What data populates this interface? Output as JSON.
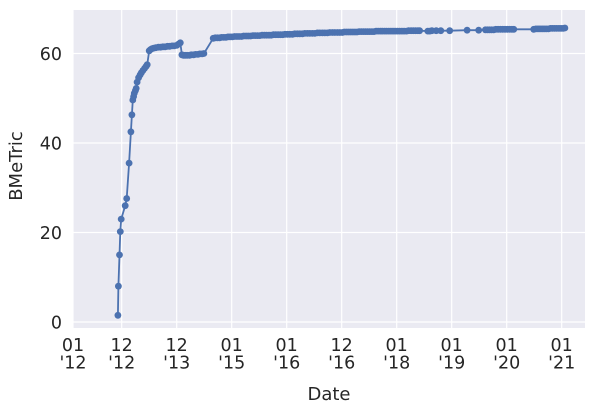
{
  "figure": {
    "background": "#ffffff"
  },
  "chart_data": {
    "type": "line",
    "title": "",
    "xlabel": "Date",
    "ylabel": "BMeTric",
    "grid": true,
    "legend": false,
    "ylim": [
      -1.3,
      69.7
    ],
    "xlim": [
      "2012-01-01",
      "2021-06-01"
    ],
    "theme": {
      "axes_background": "#eaeaf2",
      "grid_color": "#ffffff",
      "text_color": "#262626",
      "line_color": "#4c72b0",
      "marker_color": "#4c72b0"
    },
    "y_ticks": [
      0,
      20,
      40,
      60
    ],
    "x_ticks": [
      {
        "month": "01",
        "year": "'12",
        "date": "2012-01-01"
      },
      {
        "month": "12",
        "year": "'12",
        "date": "2012-12-01"
      },
      {
        "month": "12",
        "year": "'13",
        "date": "2013-12-01"
      },
      {
        "month": "01",
        "year": "'15",
        "date": "2015-01-01"
      },
      {
        "month": "01",
        "year": "'16",
        "date": "2016-01-01"
      },
      {
        "month": "12",
        "year": "'16",
        "date": "2016-12-01"
      },
      {
        "month": "01",
        "year": "'18",
        "date": "2018-01-01"
      },
      {
        "month": "01",
        "year": "'19",
        "date": "2019-01-01"
      },
      {
        "month": "01",
        "year": "'20",
        "date": "2020-01-01"
      },
      {
        "month": "01",
        "year": "'21",
        "date": "2021-01-01"
      }
    ],
    "series": [
      {
        "name": "BMeTric",
        "points": [
          [
            "2012-11-05",
            1.5
          ],
          [
            "2012-11-09",
            8.0
          ],
          [
            "2012-11-16",
            15.0
          ],
          [
            "2012-11-22",
            20.2
          ],
          [
            "2012-11-28",
            23.0
          ],
          [
            "2012-12-24",
            26.0
          ],
          [
            "2013-01-04",
            27.6
          ],
          [
            "2013-01-20",
            35.5
          ],
          [
            "2013-02-01",
            42.5
          ],
          [
            "2013-02-08",
            46.3
          ],
          [
            "2013-02-14",
            49.6
          ],
          [
            "2013-02-19",
            50.4
          ],
          [
            "2013-02-24",
            51.1
          ],
          [
            "2013-03-01",
            51.7
          ],
          [
            "2013-03-06",
            52.2
          ],
          [
            "2013-03-12",
            53.6
          ],
          [
            "2013-03-22",
            54.6
          ],
          [
            "2013-04-01",
            55.2
          ],
          [
            "2013-04-10",
            55.7
          ],
          [
            "2013-04-20",
            56.2
          ],
          [
            "2013-05-01",
            56.7
          ],
          [
            "2013-05-10",
            57.1
          ],
          [
            "2013-05-18",
            57.5
          ],
          [
            "2013-06-01",
            60.6
          ],
          [
            "2013-06-10",
            60.9
          ],
          [
            "2013-06-20",
            61.1
          ],
          [
            "2013-07-01",
            61.2
          ],
          [
            "2013-07-15",
            61.3
          ],
          [
            "2013-08-01",
            61.4
          ],
          [
            "2013-08-15",
            61.4
          ],
          [
            "2013-09-01",
            61.5
          ],
          [
            "2013-09-15",
            61.5
          ],
          [
            "2013-10-01",
            61.6
          ],
          [
            "2013-10-15",
            61.6
          ],
          [
            "2013-11-01",
            61.7
          ],
          [
            "2013-11-15",
            61.7
          ],
          [
            "2013-12-01",
            61.8
          ],
          [
            "2013-12-14",
            62.1
          ],
          [
            "2013-12-27",
            62.4
          ],
          [
            "2014-01-08",
            59.7
          ],
          [
            "2014-01-20",
            59.6
          ],
          [
            "2014-02-01",
            59.6
          ],
          [
            "2014-02-15",
            59.6
          ],
          [
            "2014-03-01",
            59.6
          ],
          [
            "2014-03-15",
            59.7
          ],
          [
            "2014-04-01",
            59.7
          ],
          [
            "2014-04-15",
            59.8
          ],
          [
            "2014-05-01",
            59.8
          ],
          [
            "2014-05-15",
            59.9
          ],
          [
            "2014-06-01",
            59.9
          ],
          [
            "2014-06-14",
            60.0
          ],
          [
            "2014-08-20",
            63.4
          ],
          [
            "2014-09-05",
            63.5
          ],
          [
            "2014-09-20",
            63.5
          ],
          [
            "2014-10-05",
            63.5
          ],
          [
            "2014-10-20",
            63.6
          ],
          [
            "2014-11-05",
            63.6
          ],
          [
            "2014-11-20",
            63.6
          ],
          [
            "2014-12-05",
            63.7
          ],
          [
            "2014-12-20",
            63.7
          ],
          [
            "2015-01-05",
            63.7
          ],
          [
            "2015-01-20",
            63.8
          ],
          [
            "2015-02-05",
            63.8
          ],
          [
            "2015-02-20",
            63.8
          ],
          [
            "2015-03-05",
            63.8
          ],
          [
            "2015-03-20",
            63.9
          ],
          [
            "2015-04-05",
            63.9
          ],
          [
            "2015-04-20",
            63.9
          ],
          [
            "2015-05-05",
            63.9
          ],
          [
            "2015-05-20",
            64.0
          ],
          [
            "2015-06-05",
            64.0
          ],
          [
            "2015-06-20",
            64.0
          ],
          [
            "2015-07-05",
            64.0
          ],
          [
            "2015-07-20",
            64.1
          ],
          [
            "2015-08-05",
            64.1
          ],
          [
            "2015-08-20",
            64.1
          ],
          [
            "2015-09-05",
            64.1
          ],
          [
            "2015-09-20",
            64.1
          ],
          [
            "2015-10-05",
            64.2
          ],
          [
            "2015-10-20",
            64.2
          ],
          [
            "2015-11-05",
            64.2
          ],
          [
            "2015-11-20",
            64.2
          ],
          [
            "2015-12-05",
            64.2
          ],
          [
            "2015-12-20",
            64.3
          ],
          [
            "2016-01-05",
            64.3
          ],
          [
            "2016-01-20",
            64.3
          ],
          [
            "2016-02-05",
            64.3
          ],
          [
            "2016-02-20",
            64.4
          ],
          [
            "2016-03-05",
            64.4
          ],
          [
            "2016-03-20",
            64.4
          ],
          [
            "2016-04-05",
            64.4
          ],
          [
            "2016-04-20",
            64.5
          ],
          [
            "2016-05-05",
            64.5
          ],
          [
            "2016-05-20",
            64.5
          ],
          [
            "2016-06-05",
            64.5
          ],
          [
            "2016-06-20",
            64.5
          ],
          [
            "2016-07-05",
            64.6
          ],
          [
            "2016-07-20",
            64.6
          ],
          [
            "2016-08-05",
            64.6
          ],
          [
            "2016-08-20",
            64.6
          ],
          [
            "2016-09-05",
            64.6
          ],
          [
            "2016-09-20",
            64.7
          ],
          [
            "2016-10-05",
            64.7
          ],
          [
            "2016-10-20",
            64.7
          ],
          [
            "2016-11-05",
            64.7
          ],
          [
            "2016-11-20",
            64.7
          ],
          [
            "2016-12-05",
            64.7
          ],
          [
            "2016-12-20",
            64.8
          ],
          [
            "2017-01-05",
            64.8
          ],
          [
            "2017-01-20",
            64.8
          ],
          [
            "2017-02-05",
            64.8
          ],
          [
            "2017-02-20",
            64.8
          ],
          [
            "2017-03-05",
            64.8
          ],
          [
            "2017-03-20",
            64.8
          ],
          [
            "2017-04-05",
            64.9
          ],
          [
            "2017-04-20",
            64.9
          ],
          [
            "2017-05-05",
            64.9
          ],
          [
            "2017-05-20",
            64.9
          ],
          [
            "2017-06-05",
            64.9
          ],
          [
            "2017-06-20",
            64.9
          ],
          [
            "2017-07-05",
            64.9
          ],
          [
            "2017-07-20",
            64.9
          ],
          [
            "2017-08-05",
            65.0
          ],
          [
            "2017-08-20",
            65.0
          ],
          [
            "2017-09-05",
            65.0
          ],
          [
            "2017-09-20",
            65.0
          ],
          [
            "2017-10-05",
            65.0
          ],
          [
            "2017-10-20",
            65.0
          ],
          [
            "2017-11-05",
            65.0
          ],
          [
            "2017-11-20",
            65.0
          ],
          [
            "2017-12-05",
            65.0
          ],
          [
            "2017-12-20",
            65.0
          ],
          [
            "2018-01-05",
            65.0
          ],
          [
            "2018-01-20",
            65.0
          ],
          [
            "2018-02-05",
            65.0
          ],
          [
            "2018-02-20",
            65.0
          ],
          [
            "2018-03-05",
            65.0
          ],
          [
            "2018-03-20",
            65.1
          ],
          [
            "2018-04-05",
            65.1
          ],
          [
            "2018-04-20",
            65.1
          ],
          [
            "2018-05-05",
            65.1
          ],
          [
            "2018-05-20",
            65.1
          ],
          [
            "2018-06-01",
            65.1
          ],
          [
            "2018-07-25",
            65.0
          ],
          [
            "2018-08-08",
            65.0
          ],
          [
            "2018-08-22",
            65.1
          ],
          [
            "2018-09-20",
            65.1
          ],
          [
            "2018-10-20",
            65.1
          ],
          [
            "2018-12-18",
            65.1
          ],
          [
            "2019-04-12",
            65.2
          ],
          [
            "2019-06-28",
            65.2
          ],
          [
            "2019-08-12",
            65.3
          ],
          [
            "2019-08-25",
            65.3
          ],
          [
            "2019-09-08",
            65.3
          ],
          [
            "2019-09-22",
            65.3
          ],
          [
            "2019-10-06",
            65.3
          ],
          [
            "2019-10-20",
            65.4
          ],
          [
            "2019-11-05",
            65.4
          ],
          [
            "2019-11-20",
            65.4
          ],
          [
            "2019-12-05",
            65.4
          ],
          [
            "2019-12-20",
            65.4
          ],
          [
            "2020-01-05",
            65.4
          ],
          [
            "2020-01-20",
            65.4
          ],
          [
            "2020-02-05",
            65.4
          ],
          [
            "2020-02-18",
            65.4
          ],
          [
            "2020-06-28",
            65.4
          ],
          [
            "2020-07-12",
            65.5
          ],
          [
            "2020-07-26",
            65.5
          ],
          [
            "2020-08-09",
            65.5
          ],
          [
            "2020-08-23",
            65.5
          ],
          [
            "2020-09-06",
            65.5
          ],
          [
            "2020-09-20",
            65.5
          ],
          [
            "2020-10-04",
            65.5
          ],
          [
            "2020-10-18",
            65.6
          ],
          [
            "2020-11-01",
            65.6
          ],
          [
            "2020-11-15",
            65.6
          ],
          [
            "2020-11-29",
            65.6
          ],
          [
            "2020-12-13",
            65.6
          ],
          [
            "2020-12-27",
            65.6
          ],
          [
            "2021-01-10",
            65.6
          ],
          [
            "2021-01-22",
            65.7
          ]
        ]
      }
    ]
  }
}
